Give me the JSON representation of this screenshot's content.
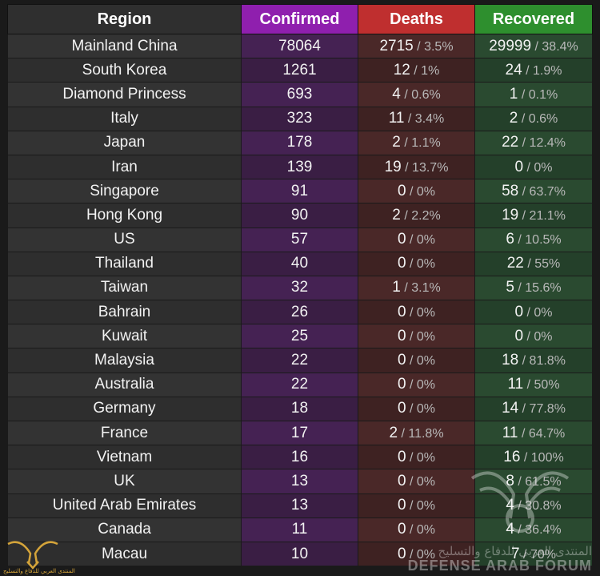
{
  "headers": {
    "region": "Region",
    "confirmed": "Confirmed",
    "deaths": "Deaths",
    "recovered": "Recovered"
  },
  "colors": {
    "confirmed_header": "#8f1fae",
    "deaths_header": "#bf2f2f",
    "recovered_header": "#2e8f2e"
  },
  "rows": [
    {
      "region": "Mainland China",
      "confirmed": "78064",
      "deaths": "2715",
      "deaths_pct": "3.5%",
      "recovered": "29999",
      "recovered_pct": "38.4%"
    },
    {
      "region": "South Korea",
      "confirmed": "1261",
      "deaths": "12",
      "deaths_pct": "1%",
      "recovered": "24",
      "recovered_pct": "1.9%"
    },
    {
      "region": "Diamond Princess",
      "confirmed": "693",
      "deaths": "4",
      "deaths_pct": "0.6%",
      "recovered": "1",
      "recovered_pct": "0.1%"
    },
    {
      "region": "Italy",
      "confirmed": "323",
      "deaths": "11",
      "deaths_pct": "3.4%",
      "recovered": "2",
      "recovered_pct": "0.6%"
    },
    {
      "region": "Japan",
      "confirmed": "178",
      "deaths": "2",
      "deaths_pct": "1.1%",
      "recovered": "22",
      "recovered_pct": "12.4%"
    },
    {
      "region": "Iran",
      "confirmed": "139",
      "deaths": "19",
      "deaths_pct": "13.7%",
      "recovered": "0",
      "recovered_pct": "0%"
    },
    {
      "region": "Singapore",
      "confirmed": "91",
      "deaths": "0",
      "deaths_pct": "0%",
      "recovered": "58",
      "recovered_pct": "63.7%"
    },
    {
      "region": "Hong Kong",
      "confirmed": "90",
      "deaths": "2",
      "deaths_pct": "2.2%",
      "recovered": "19",
      "recovered_pct": "21.1%"
    },
    {
      "region": "US",
      "confirmed": "57",
      "deaths": "0",
      "deaths_pct": "0%",
      "recovered": "6",
      "recovered_pct": "10.5%"
    },
    {
      "region": "Thailand",
      "confirmed": "40",
      "deaths": "0",
      "deaths_pct": "0%",
      "recovered": "22",
      "recovered_pct": "55%"
    },
    {
      "region": "Taiwan",
      "confirmed": "32",
      "deaths": "1",
      "deaths_pct": "3.1%",
      "recovered": "5",
      "recovered_pct": "15.6%"
    },
    {
      "region": "Bahrain",
      "confirmed": "26",
      "deaths": "0",
      "deaths_pct": "0%",
      "recovered": "0",
      "recovered_pct": "0%"
    },
    {
      "region": "Kuwait",
      "confirmed": "25",
      "deaths": "0",
      "deaths_pct": "0%",
      "recovered": "0",
      "recovered_pct": "0%"
    },
    {
      "region": "Malaysia",
      "confirmed": "22",
      "deaths": "0",
      "deaths_pct": "0%",
      "recovered": "18",
      "recovered_pct": "81.8%"
    },
    {
      "region": "Australia",
      "confirmed": "22",
      "deaths": "0",
      "deaths_pct": "0%",
      "recovered": "11",
      "recovered_pct": "50%"
    },
    {
      "region": "Germany",
      "confirmed": "18",
      "deaths": "0",
      "deaths_pct": "0%",
      "recovered": "14",
      "recovered_pct": "77.8%"
    },
    {
      "region": "France",
      "confirmed": "17",
      "deaths": "2",
      "deaths_pct": "11.8%",
      "recovered": "11",
      "recovered_pct": "64.7%"
    },
    {
      "region": "Vietnam",
      "confirmed": "16",
      "deaths": "0",
      "deaths_pct": "0%",
      "recovered": "16",
      "recovered_pct": "100%"
    },
    {
      "region": "UK",
      "confirmed": "13",
      "deaths": "0",
      "deaths_pct": "0%",
      "recovered": "8",
      "recovered_pct": "61.5%"
    },
    {
      "region": "United Arab Emirates",
      "confirmed": "13",
      "deaths": "0",
      "deaths_pct": "0%",
      "recovered": "4",
      "recovered_pct": "30.8%"
    },
    {
      "region": "Canada",
      "confirmed": "11",
      "deaths": "0",
      "deaths_pct": "0%",
      "recovered": "4",
      "recovered_pct": "36.4%"
    },
    {
      "region": "Macau",
      "confirmed": "10",
      "deaths": "0",
      "deaths_pct": "0%",
      "recovered": "7",
      "recovered_pct": "70%"
    }
  ],
  "watermark": {
    "arabic": "المنتدى العربي للدفاع والتسليح",
    "english": "DEFENSE ARAB FORUM",
    "emblem_icon": "eagle-emblem-icon",
    "logo_icon": "forum-logo-icon",
    "logo_text": "المنتدى العربي للدفاع والتسليح"
  }
}
